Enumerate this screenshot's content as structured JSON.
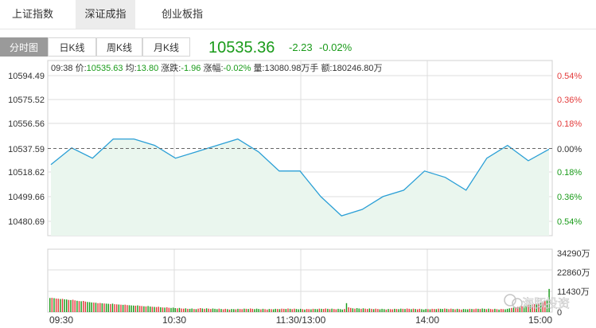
{
  "tabs": [
    {
      "label": "上证指数",
      "active": false
    },
    {
      "label": "深证成指",
      "active": true
    },
    {
      "label": "创业板指",
      "active": false
    }
  ],
  "toolbar": {
    "buttons": [
      {
        "label": "分时图",
        "active": true
      },
      {
        "label": "日K线",
        "active": false
      },
      {
        "label": "周K线",
        "active": false
      },
      {
        "label": "月K线",
        "active": false
      }
    ],
    "price": "10535.36",
    "change": "-2.23",
    "change_pct": "-0.02%"
  },
  "info_bar": {
    "time": "09:38",
    "price_label": "价:",
    "price": "10535.63",
    "avg_label": "均:",
    "avg": "13.80",
    "change_label": "涨跌:",
    "change": "-1.96",
    "pct_label": "涨幅:",
    "pct": "-0.02%",
    "volume_label": "量:",
    "volume": "13080.98万手",
    "amount_label": "额:",
    "amount": "180246.80万"
  },
  "watermark": "海豚投资",
  "colors": {
    "line": "#2a9fd6",
    "fill": "#eaf6ee",
    "up": "#e33b3b",
    "down": "#1a9b1a",
    "grid": "#dddddd",
    "prev_close": "#666666"
  },
  "chart_data": [
    {
      "type": "area",
      "title": "",
      "x": [
        "09:30",
        "09:40",
        "09:50",
        "10:00",
        "10:10",
        "10:20",
        "10:30",
        "10:40",
        "10:50",
        "11:00",
        "11:10",
        "11:20",
        "11:30/13:00",
        "13:10",
        "13:20",
        "13:30",
        "13:40",
        "13:50",
        "14:00",
        "14:10",
        "14:20",
        "14:30",
        "14:40",
        "14:50",
        "15:00"
      ],
      "xticks": [
        "09:30",
        "10:30",
        "11:30/13:00",
        "14:00",
        "15:00"
      ],
      "series": [
        {
          "values": [
            10525,
            10538,
            10530,
            10545,
            10545,
            10540,
            10530,
            10535,
            10540,
            10545,
            10535,
            10520,
            10520,
            10500,
            10485,
            10490,
            10500,
            10505,
            10520,
            10515,
            10505,
            10530,
            10540,
            10528,
            10537
          ]
        }
      ],
      "prev_close": 10537.59,
      "left_ticks": [
        "10594.49",
        "10575.52",
        "10556.56",
        "10537.59",
        "10518.62",
        "10499.66",
        "10480.69"
      ],
      "right_ticks": [
        "0.54%",
        "0.36%",
        "0.18%",
        "0.00%",
        "0.18%",
        "0.36%",
        "0.54%"
      ],
      "ylim": [
        10480.69,
        10594.49
      ]
    },
    {
      "type": "bar",
      "title": "",
      "ticks": [
        "34290万",
        "22860万",
        "11430万",
        "0"
      ],
      "ylim": [
        0,
        34290
      ],
      "values": [
        8200,
        8300,
        8100,
        7900,
        7800,
        7600,
        7700,
        7400,
        7300,
        7100,
        7000,
        7200,
        6800,
        6600,
        6400,
        6300,
        6500,
        6100,
        5900,
        5800,
        5600,
        5500,
        5400,
        5200,
        5300,
        5100,
        5000,
        4900,
        4800,
        4700,
        4900,
        4600,
        4500,
        4400,
        4300,
        4200,
        4300,
        4100,
        4000,
        3900,
        3800,
        3700,
        3900,
        3600,
        3500,
        3400,
        3300,
        3500,
        3200,
        3100,
        3000,
        2900,
        3100,
        2800,
        2700,
        2600,
        2800,
        2500,
        2400,
        2600,
        2300,
        2200,
        2400,
        2100,
        2000,
        2200,
        1900,
        1900,
        2100,
        1800,
        1700,
        2000,
        2300,
        2100,
        1900,
        2200,
        2000,
        1800,
        2100,
        1900,
        1700,
        2000,
        1800,
        1600,
        1900,
        1700,
        1500,
        1800,
        1700,
        1600,
        1900,
        1800,
        1700,
        2000,
        1900,
        1800,
        2100,
        1900,
        1700,
        2000,
        1800,
        1600,
        1900,
        1700,
        1500,
        1800,
        1700,
        1600,
        1900,
        1800,
        1700,
        2000,
        1900,
        1800,
        2100,
        1900,
        1700,
        2000,
        1800,
        1600,
        1900,
        1700,
        1500,
        1800,
        1700,
        1600,
        1900,
        1800,
        1700,
        2000,
        1900,
        1800,
        2100,
        1900,
        1700,
        2000,
        1800,
        1600,
        1900,
        1700,
        1500,
        1800,
        5200,
        2800,
        2400,
        2200,
        2000,
        2300,
        2100,
        1900,
        2200,
        2000,
        1800,
        2100,
        1900,
        1700,
        2000,
        1800,
        1600,
        1900,
        1700,
        1500,
        1800,
        1700,
        1600,
        1900,
        1800,
        1700,
        2000,
        1900,
        1800,
        2100,
        1900,
        1700,
        2000,
        1800,
        1600,
        1900,
        1700,
        1500,
        1800,
        1700,
        1600,
        1900,
        1800,
        1700,
        2000,
        1900,
        1800,
        2100,
        1900,
        1700,
        2000,
        1800,
        1600,
        1900,
        1700,
        1500,
        1800,
        1700,
        1600,
        1900,
        1800,
        1700,
        2000,
        1900,
        1800,
        2100,
        1900,
        1700,
        2000,
        1800,
        1600,
        1900,
        1700,
        1500,
        1800,
        1700,
        1600,
        1900,
        2200,
        2400,
        2600,
        2800,
        3000,
        3200,
        3400,
        3600,
        3800,
        4000,
        4200,
        4400,
        4600,
        4800,
        5000,
        5400,
        5800,
        6400,
        7200,
        13500
      ],
      "up_pattern": [
        0,
        1,
        0,
        1,
        1,
        0,
        1,
        0,
        0,
        1,
        0,
        1,
        1,
        0,
        1,
        0,
        1,
        1,
        0,
        0
      ]
    }
  ]
}
